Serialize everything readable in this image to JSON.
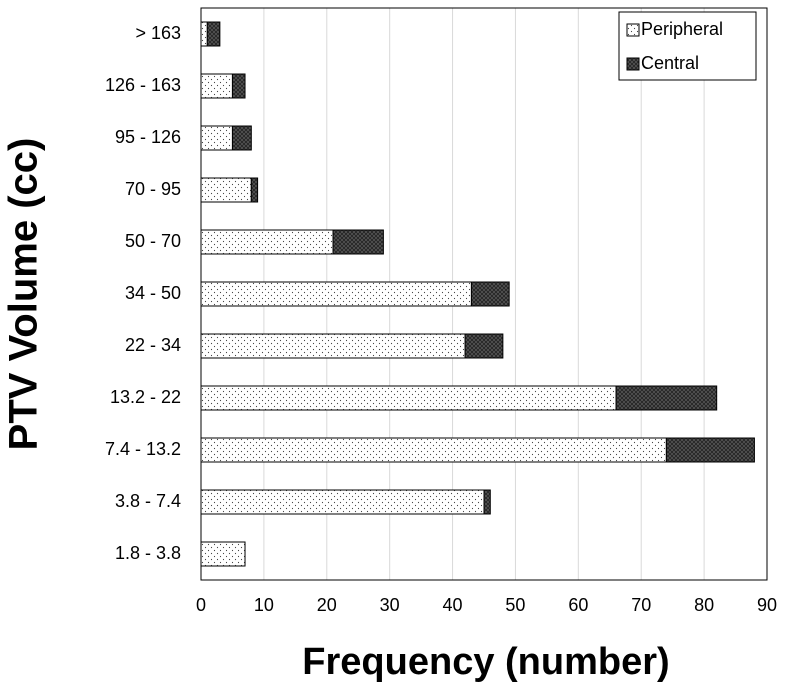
{
  "chart_data": {
    "type": "stacked-bar-horizontal",
    "xlabel": "Frequency (number)",
    "ylabel": "PTV Volume (cc)",
    "categories": [
      "> 163",
      "126 - 163",
      "95 - 126",
      "70 - 95",
      "50 - 70",
      "34 - 50",
      "22 - 34",
      "13.2 - 22",
      "7.4 - 13.2",
      "3.8 - 7.4",
      "1.8 - 3.8"
    ],
    "series": [
      {
        "name": "Peripheral",
        "color": "#ffffff",
        "values": [
          1,
          5,
          5,
          8,
          21,
          43,
          42,
          66,
          74,
          45,
          7
        ]
      },
      {
        "name": "Central",
        "color": "#555555",
        "values": [
          2,
          2,
          3,
          1,
          8,
          6,
          6,
          16,
          14,
          1,
          0
        ]
      }
    ],
    "xlim": [
      0,
      90
    ],
    "xticks": [
      0,
      10,
      20,
      30,
      40,
      50,
      60,
      70,
      80,
      90
    ],
    "grid": true,
    "legend": "top-right"
  }
}
